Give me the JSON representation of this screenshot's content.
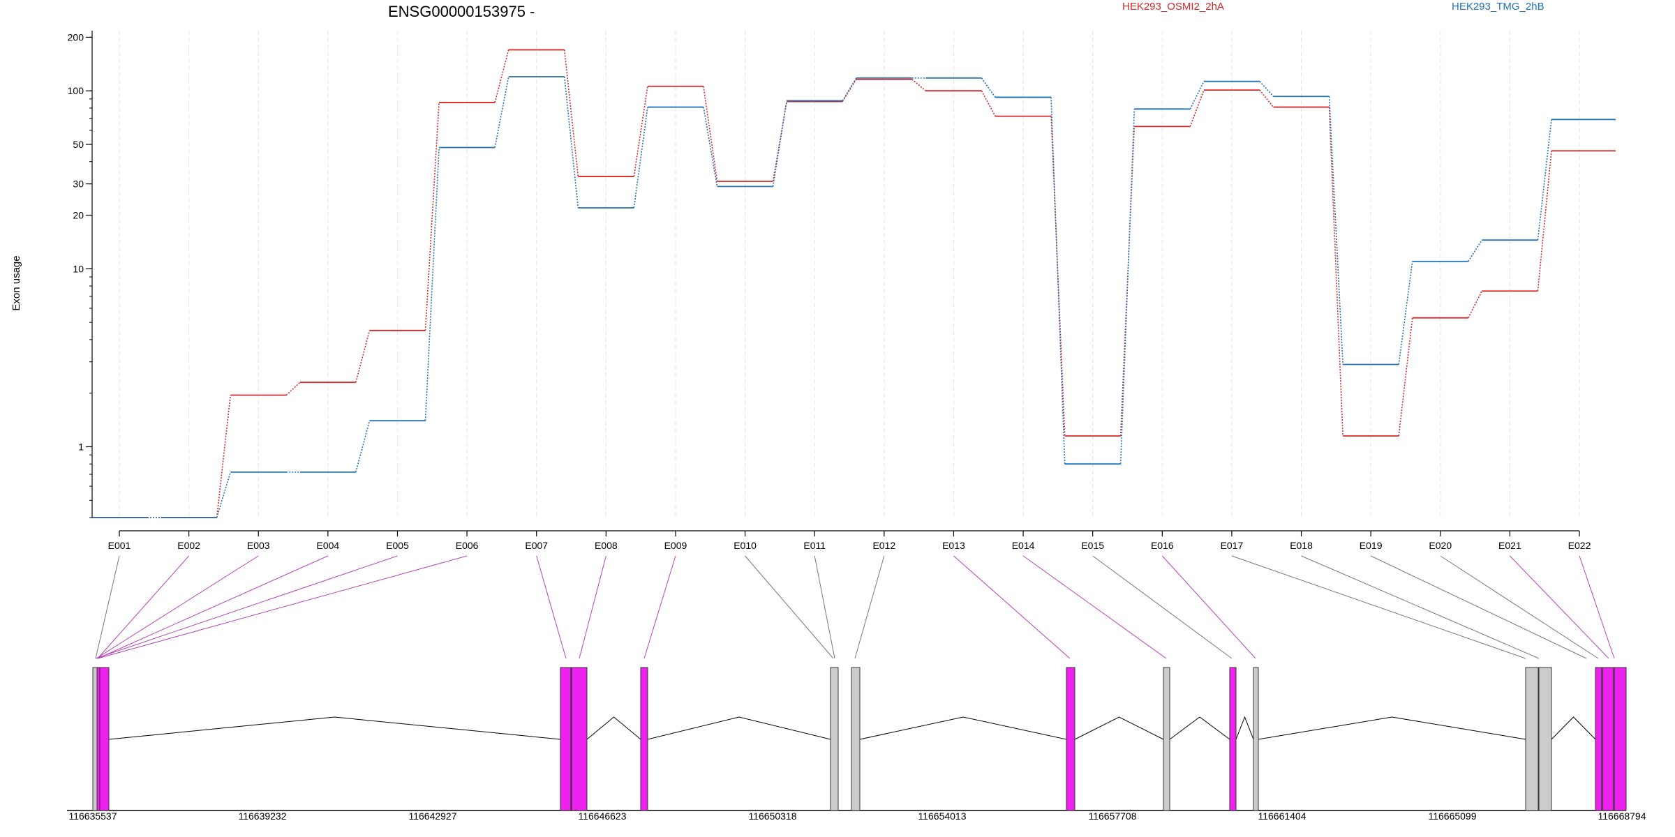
{
  "chart_data": {
    "type": "line",
    "title": "ENSG00000153975 -",
    "ylabel": "Exon usage",
    "y_scale": "log",
    "ylim": [
      0.4,
      210
    ],
    "y_ticks": [
      1,
      10,
      20,
      30,
      50,
      100,
      200
    ],
    "y_tick_labels": [
      "1",
      "10",
      "20",
      "30",
      "50",
      "100",
      "200"
    ],
    "categories": [
      "E001",
      "E002",
      "E003",
      "E004",
      "E005",
      "E006",
      "E007",
      "E008",
      "E009",
      "E010",
      "E011",
      "E012",
      "E013",
      "E014",
      "E015",
      "E016",
      "E017",
      "E018",
      "E019",
      "E020",
      "E021",
      "E022"
    ],
    "series": [
      {
        "name": "HEK293_OSMI2_2hA",
        "color": "#d62728",
        "values": [
          0.4,
          0.4,
          1.95,
          2.3,
          4.5,
          86,
          170,
          33,
          106,
          31,
          87,
          116,
          100,
          72,
          1.15,
          63,
          101,
          81,
          1.15,
          5.3,
          7.5,
          46
        ]
      },
      {
        "name": "HEK293_TMG_2hB",
        "color": "#2171b5",
        "values": [
          0.4,
          0.4,
          0.72,
          0.72,
          1.4,
          48,
          120,
          22,
          81,
          29,
          88,
          118,
          118,
          92,
          0.8,
          79,
          113,
          93,
          2.9,
          11,
          14.5,
          69
        ]
      }
    ],
    "genomic_coordinates": [
      "116635537",
      "116639232",
      "116642927",
      "116646623",
      "116650318",
      "116654013",
      "116657708",
      "116661404",
      "116665099",
      "116668794"
    ],
    "gene_model": {
      "exon_fill_significant": "#ee22ee",
      "exon_fill_normal": "#cccccc",
      "exon_significant": [
        false,
        true,
        true,
        true,
        true,
        true,
        true,
        true,
        true,
        false,
        false,
        false,
        true,
        true,
        false,
        true,
        false,
        false,
        false,
        false,
        true,
        true
      ]
    },
    "grid": true,
    "legend_placement": "top-right"
  }
}
